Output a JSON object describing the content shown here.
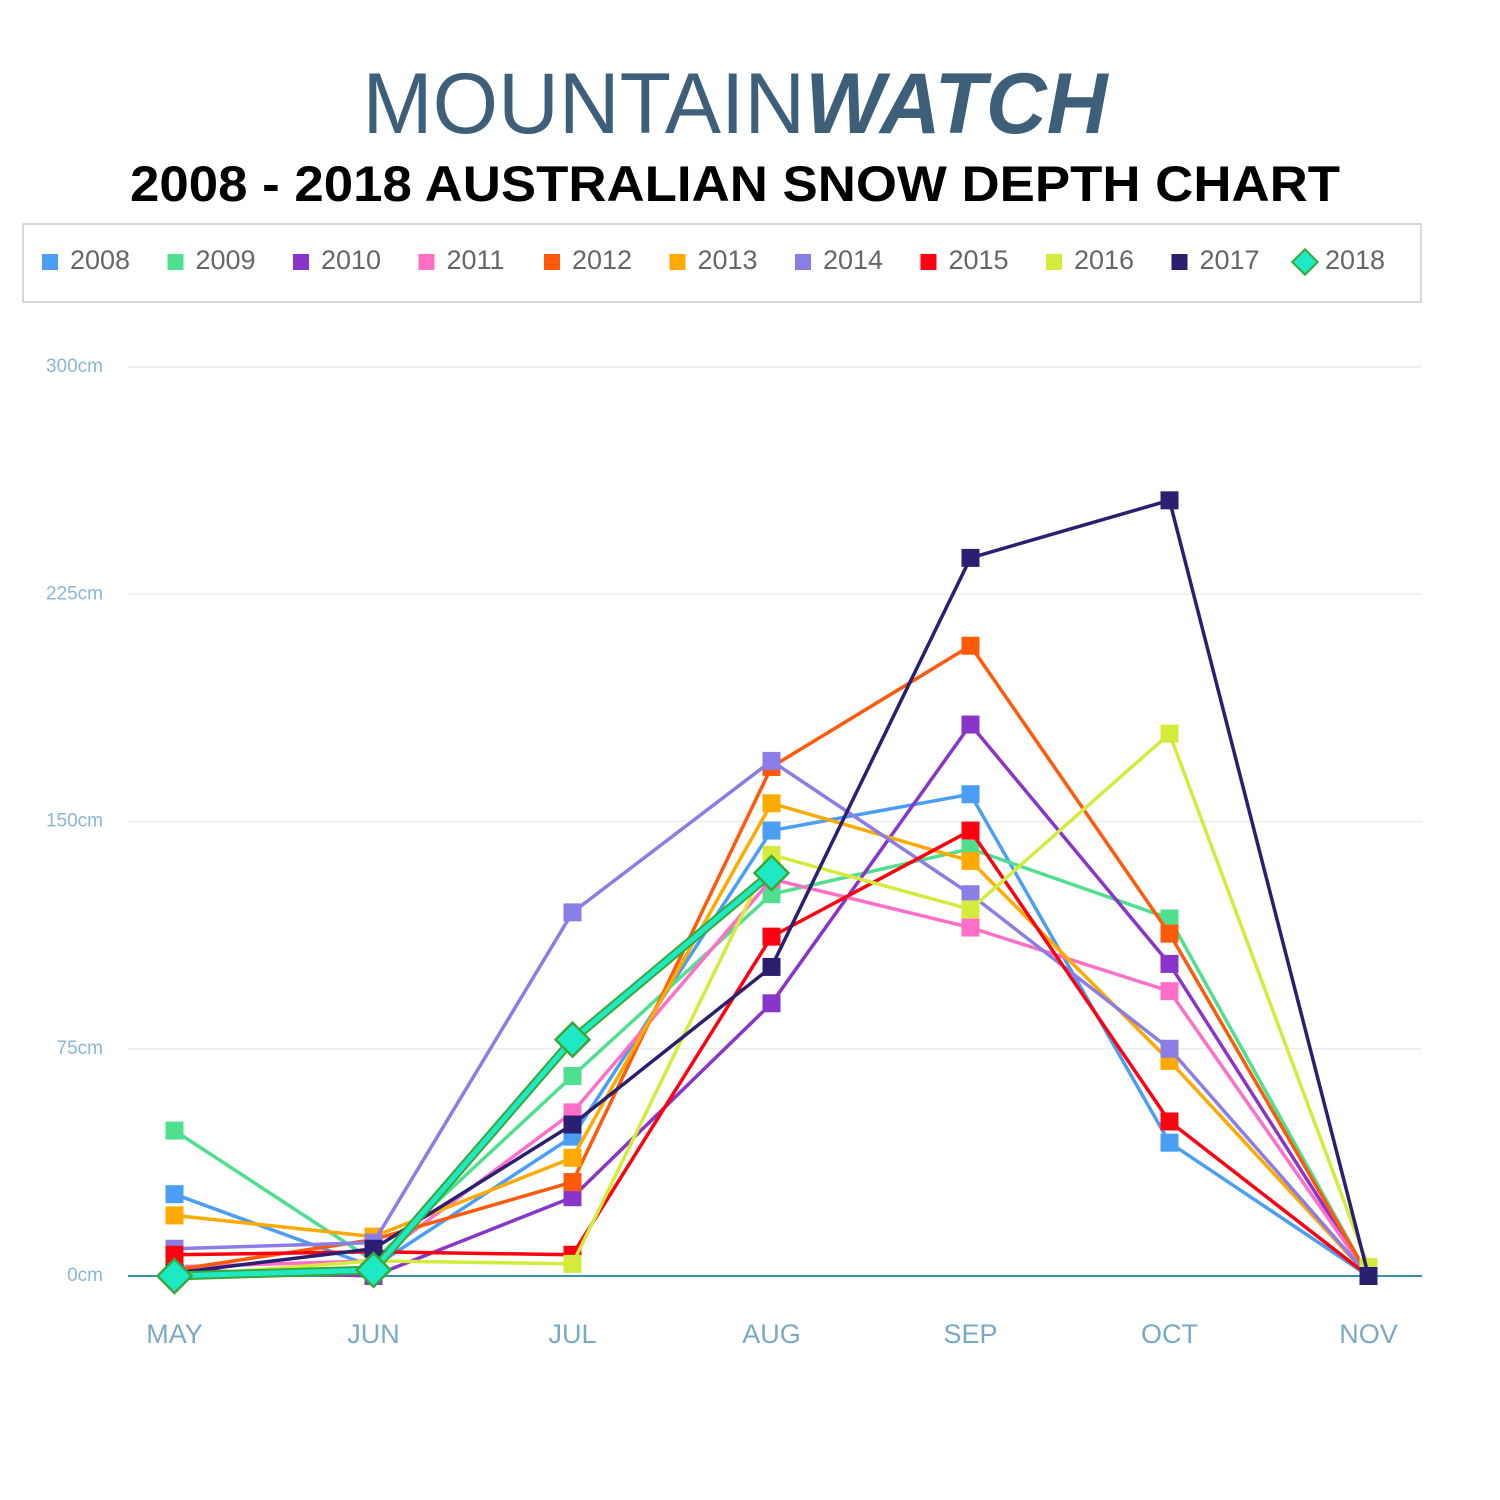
{
  "chart_data": {
    "type": "line",
    "logo_light": "MOUNTAIN",
    "logo_bold": "WATCH",
    "title": "2008 - 2018 AUSTRALIAN SNOW DEPTH CHART",
    "categories": [
      "MAY",
      "JUN",
      "JUL",
      "AUG",
      "SEP",
      "OCT",
      "NOV"
    ],
    "ylim": [
      0,
      300
    ],
    "yticks": [
      {
        "value": 0,
        "label": "0cm"
      },
      {
        "value": 75,
        "label": "75cm"
      },
      {
        "value": 150,
        "label": "150cm"
      },
      {
        "value": 225,
        "label": "225cm"
      },
      {
        "value": 300,
        "label": "300cm"
      }
    ],
    "grid": true,
    "legend": "top",
    "series": [
      {
        "name": "2008",
        "color": "#4a9ff5",
        "marker": "square",
        "values": [
          27,
          3,
          46,
          147,
          159,
          44,
          0
        ]
      },
      {
        "name": "2009",
        "color": "#4ee08f",
        "marker": "square",
        "values": [
          48,
          5,
          66,
          126,
          141,
          118,
          0
        ]
      },
      {
        "name": "2010",
        "color": "#8a35c9",
        "marker": "square",
        "values": [
          2,
          0,
          26,
          90,
          182,
          103,
          0
        ]
      },
      {
        "name": "2011",
        "color": "#ff6ec7",
        "marker": "square",
        "values": [
          3,
          5,
          54,
          131,
          115,
          94,
          0
        ]
      },
      {
        "name": "2012",
        "color": "#ff5a0a",
        "marker": "square",
        "values": [
          2,
          12,
          31,
          168,
          208,
          113,
          0
        ]
      },
      {
        "name": "2013",
        "color": "#ffaa00",
        "marker": "square",
        "values": [
          20,
          13,
          39,
          156,
          137,
          71,
          0
        ]
      },
      {
        "name": "2014",
        "color": "#8a7de6",
        "marker": "square",
        "values": [
          9,
          11,
          120,
          170,
          126,
          75,
          0
        ]
      },
      {
        "name": "2015",
        "color": "#ff0010",
        "marker": "square",
        "values": [
          7,
          8,
          7,
          112,
          147,
          51,
          0
        ]
      },
      {
        "name": "2016",
        "color": "#d4eb3c",
        "marker": "square",
        "values": [
          0,
          5,
          4,
          139,
          121,
          179,
          3
        ]
      },
      {
        "name": "2017",
        "color": "#2b1f72",
        "marker": "square",
        "values": [
          1,
          9,
          50,
          102,
          237,
          256,
          0
        ]
      },
      {
        "name": "2018",
        "color": "#1de9c5",
        "edge_color": "#3aa838",
        "marker": "diamond",
        "values": [
          0,
          2,
          78,
          133,
          null,
          null,
          null
        ]
      }
    ]
  }
}
